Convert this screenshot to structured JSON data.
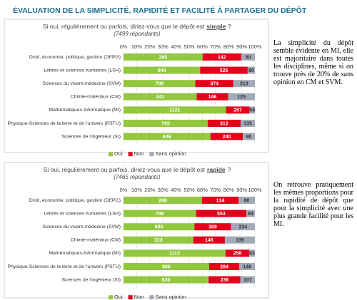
{
  "title": "ÉVALUATION DE LA SIMPLICITÉ, RAPIDITÉ ET FACILITÉ À PARTAGER DU DÉPÔT",
  "chart_data": [
    {
      "type": "bar",
      "orientation": "horizontal",
      "stacked": "percent",
      "subtitle": "Si oui, régulièrement ou parfois, diriez-vous que le dépôt est",
      "subtitle_keyword": "simple",
      "subtitle_end": "?",
      "note": "(7499 répondants)",
      "categories": [
        "Droit, économie, politique, gestion (DEPG)",
        "Lettres et sciences humaines (LSH)",
        "Sciences du vivant-médecine (SVM)",
        "Chimie-matériaux (CM)",
        "Mathématiques-Informatique (MI)",
        "Physique-Sciences de la terre et de l'univers (PSTU)",
        "Sciences de l'ingénieur (SI)"
      ],
      "series": [
        {
          "name": "Oui",
          "color": "#92c83e",
          "values": [
            290,
            849,
            708,
            341,
            1121,
            795,
            646
          ]
        },
        {
          "name": "Non",
          "color": "#e2001a",
          "values": [
            142,
            526,
            374,
            146,
            257,
            312,
            240
          ]
        },
        {
          "name": "Sans opinion",
          "color": "#a3a9b8",
          "values": [
            50,
            80,
            213,
            125,
            59,
            135,
            90
          ]
        }
      ],
      "xlim": [
        0,
        100
      ],
      "xticks": [
        {
          "value": 0,
          "label": "0%"
        },
        {
          "value": 10,
          "label": "10%"
        },
        {
          "value": 20,
          "label": "20%"
        },
        {
          "value": 30,
          "label": "30%"
        },
        {
          "value": 40,
          "label": "40%"
        },
        {
          "value": 50,
          "label": "50%"
        },
        {
          "value": 60,
          "label": "60%"
        },
        {
          "value": 70,
          "label": "70%"
        },
        {
          "value": 80,
          "label": "80%"
        },
        {
          "value": 90,
          "label": "90%"
        },
        {
          "value": 100,
          "label": "100%"
        }
      ],
      "grid": true,
      "legend": "bottom"
    },
    {
      "type": "bar",
      "orientation": "horizontal",
      "stacked": "percent",
      "subtitle": "Si oui, régulièrement ou parfois, diriez-vous que le dépôt est",
      "subtitle_keyword": "rapide",
      "subtitle_end": "?",
      "note": "(7465 répondants)",
      "categories": [
        "Droit, économie, politique, gestion (DEPG)",
        "Lettres et sciences humaines (LSH)",
        "Sciences du vivant-médecine (SVM)",
        "Chimie-matériaux (CM)",
        "Mathématiques-Informatique (MI)",
        "Physique-Sciences de la terre et de l'univers (PSTU)",
        "Sciences de l'ingénieur (SI)"
      ],
      "series": [
        {
          "name": "Oui",
          "color": "#92c83e",
          "values": [
            288,
            798,
            695,
            323,
            1113,
            806,
            630
          ]
        },
        {
          "name": "Non",
          "color": "#e2001a",
          "values": [
            134,
            553,
            359,
            146,
            258,
            284,
            236
          ]
        },
        {
          "name": "Sans opinion",
          "color": "#a3a9b8",
          "values": [
            60,
            94,
            234,
            139,
            62,
            146,
            107
          ]
        }
      ],
      "xlim": [
        0,
        100
      ],
      "xticks": [
        {
          "value": 0,
          "label": "0%"
        },
        {
          "value": 10,
          "label": "10%"
        },
        {
          "value": 20,
          "label": "20%"
        },
        {
          "value": 30,
          "label": "30%"
        },
        {
          "value": 40,
          "label": "40%"
        },
        {
          "value": 50,
          "label": "50%"
        },
        {
          "value": 60,
          "label": "60%"
        },
        {
          "value": 70,
          "label": "70%"
        },
        {
          "value": 80,
          "label": "80%"
        },
        {
          "value": 90,
          "label": "90%"
        },
        {
          "value": 100,
          "label": "100%"
        }
      ],
      "grid": true,
      "legend": "bottom"
    }
  ],
  "notes": [
    "La simplicité du dépôt semble évidente en MI, elle est majoritaire dans toutes les disciplines, même si on trouve près de 20% de sans opinion en CM et SVM.",
    "On retrouve pratiquement les mêmes proportions pour la rapidité de dépôt que pour la simplicité avec une plus grande facilité pour les MI."
  ]
}
